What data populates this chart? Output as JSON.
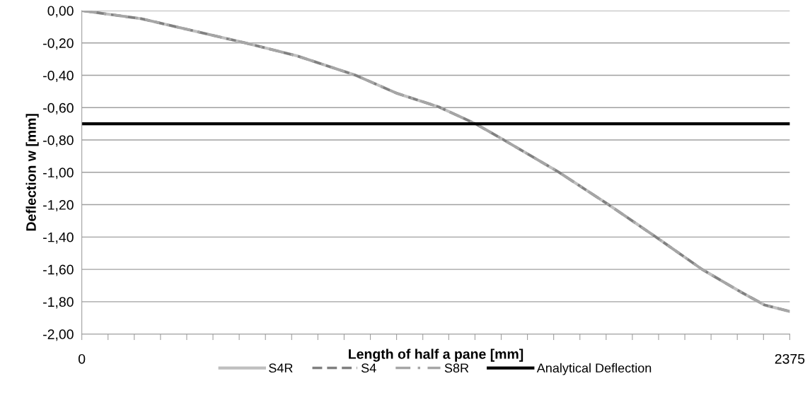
{
  "chart_data": {
    "type": "line",
    "xlabel": "Length of half a pane [mm]",
    "ylabel": "Deflection w [mm]",
    "xlim": [
      0,
      2375
    ],
    "ylim": [
      -2,
      0
    ],
    "xticks": [
      0,
      {
        "value": 88,
        "label": null
      },
      {
        "value": 176,
        "label": null
      },
      {
        "value": 264,
        "label": null
      },
      {
        "value": 352,
        "label": null
      },
      {
        "value": 440,
        "label": null
      },
      {
        "value": 528,
        "label": null
      },
      {
        "value": 616,
        "label": null
      },
      {
        "value": 704,
        "label": null
      },
      {
        "value": 792,
        "label": null
      },
      {
        "value": 880,
        "label": null
      },
      {
        "value": 968,
        "label": null
      },
      {
        "value": 1056,
        "label": null
      },
      {
        "value": 1144,
        "label": null
      },
      {
        "value": 1231,
        "label": null
      },
      {
        "value": 1319,
        "label": null
      },
      {
        "value": 1407,
        "label": null
      },
      {
        "value": 1495,
        "label": null
      },
      {
        "value": 1583,
        "label": null
      },
      {
        "value": 1671,
        "label": null
      },
      {
        "value": 1759,
        "label": null
      },
      {
        "value": 1847,
        "label": null
      },
      {
        "value": 1935,
        "label": null
      },
      {
        "value": 2023,
        "label": null
      },
      {
        "value": 2111,
        "label": null
      },
      {
        "value": 2199,
        "label": null
      },
      {
        "value": 2287,
        "label": null
      },
      2375
    ],
    "yticks": [
      {
        "value": 0,
        "label": "0,00"
      },
      {
        "value": -0.2,
        "label": "-0,20"
      },
      {
        "value": -0.4,
        "label": "-0,40"
      },
      {
        "value": -0.6,
        "label": "-0,60"
      },
      {
        "value": -0.8,
        "label": "-0,80"
      },
      {
        "value": -1.0,
        "label": "-1,00"
      },
      {
        "value": -1.2,
        "label": "-1,20"
      },
      {
        "value": -1.4,
        "label": "-1,40"
      },
      {
        "value": -1.6,
        "label": "-1,60"
      },
      {
        "value": -1.8,
        "label": "-1,80"
      },
      {
        "value": -2.0,
        "label": "-2,00"
      }
    ],
    "grid": "y",
    "legend": "bottom",
    "marker": "none",
    "x": [
      0,
      200,
      549,
      722,
      919,
      1055,
      1197,
      1321,
      1416,
      1601,
      1767,
      1926,
      2081,
      2211,
      2290,
      2375
    ],
    "series": [
      {
        "name": "S4R",
        "color": "#bfbfbf",
        "line_style": "solid",
        "values": [
          0,
          -0.05,
          -0.2,
          -0.28,
          -0.4,
          -0.51,
          -0.595,
          -0.7,
          -0.8,
          -1.0,
          -1.2,
          -1.4,
          -1.6,
          -1.74,
          -1.82,
          -1.86
        ]
      },
      {
        "name": "S4",
        "color": "#808080",
        "line_style": "dashed",
        "values": [
          0,
          -0.05,
          -0.2,
          -0.28,
          -0.4,
          -0.51,
          -0.595,
          -0.7,
          -0.8,
          -1.0,
          -1.2,
          -1.4,
          -1.6,
          -1.74,
          -1.82,
          -1.86
        ]
      },
      {
        "name": "S8R",
        "color": "#a6a6a6",
        "line_style": "dashdot",
        "values": [
          0,
          -0.05,
          -0.2,
          -0.28,
          -0.4,
          -0.51,
          -0.595,
          -0.7,
          -0.8,
          -1.0,
          -1.2,
          -1.4,
          -1.6,
          -1.74,
          -1.82,
          -1.86
        ]
      },
      {
        "name": "Analytical Deflection",
        "color": "#000000",
        "line_style": "solid",
        "x": [
          0,
          2375
        ],
        "values": [
          -0.7,
          -0.7
        ]
      }
    ]
  }
}
